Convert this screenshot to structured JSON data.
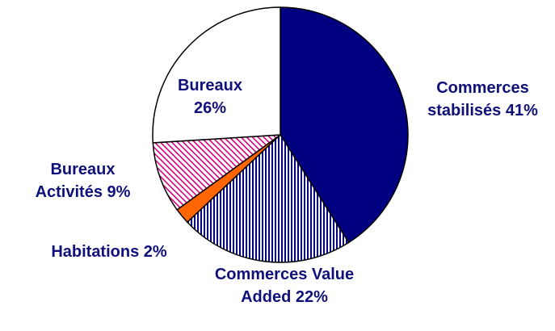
{
  "chart_data": {
    "type": "pie",
    "categories": [
      "Commerces stabilisés",
      "Commerces Value Added",
      "Habitations",
      "Bureaux Activités",
      "Bureaux"
    ],
    "values": [
      41,
      22,
      2,
      9,
      26
    ],
    "value_labels": [
      "41%",
      "22%",
      "2%",
      "9%",
      "26%"
    ],
    "colors": [
      "#000080",
      "#000080",
      "#ff6600",
      "#d4007a",
      "#ffffff"
    ],
    "patterns": [
      null,
      "vertical",
      null,
      "diagonal",
      null
    ]
  }
}
